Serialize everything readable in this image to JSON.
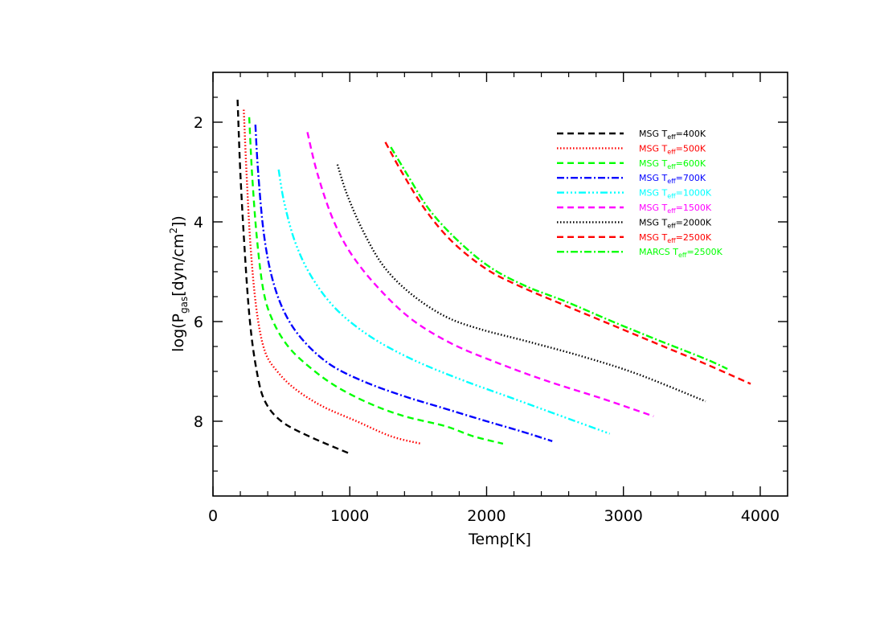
{
  "chart_data": {
    "type": "line",
    "title": "",
    "xlabel": "Temp[K]",
    "ylabel_parts": {
      "pre": "log(P",
      "sub": "gas",
      "mid": "[dyn/cm",
      "sup": "2",
      "post": "])"
    },
    "xlim": [
      0,
      4200
    ],
    "ylim": [
      9.5,
      1
    ],
    "y_inverted": true,
    "xticks": [
      0,
      1000,
      2000,
      3000,
      4000
    ],
    "yticks": [
      2,
      4,
      6,
      8
    ],
    "legend_position": "top-right",
    "series": [
      {
        "name": "MSG Teff=400K",
        "label_pre": "MSG T",
        "label_sub": "eff",
        "label_post": "=400K",
        "color": "#000000",
        "dash": "dashed",
        "x": [
          180,
          200,
          230,
          270,
          320,
          380,
          500,
          700,
          1000
        ],
        "y": [
          1.55,
          3.0,
          4.5,
          6.0,
          7.0,
          7.6,
          8.0,
          8.3,
          8.65
        ]
      },
      {
        "name": "MSG Teff=500K",
        "label_pre": "MSG T",
        "label_sub": "eff",
        "label_post": "=500K",
        "color": "#ff0000",
        "dash": "dotted",
        "x": [
          225,
          245,
          275,
          320,
          380,
          470,
          600,
          800,
          1050,
          1300,
          1520
        ],
        "y": [
          1.75,
          3.0,
          4.5,
          5.8,
          6.6,
          7.0,
          7.35,
          7.7,
          8.0,
          8.3,
          8.45
        ]
      },
      {
        "name": "MSG Teff=600K",
        "label_pre": "MSG T",
        "label_sub": "eff",
        "label_post": "=600K",
        "color": "#00ff00",
        "dash": "dashed",
        "x": [
          265,
          285,
          320,
          370,
          440,
          550,
          700,
          900,
          1150,
          1400,
          1700,
          1900,
          2120
        ],
        "y": [
          1.9,
          3.0,
          4.3,
          5.4,
          6.0,
          6.5,
          6.9,
          7.3,
          7.65,
          7.9,
          8.1,
          8.3,
          8.45
        ]
      },
      {
        "name": "MSG Teff=700K",
        "label_pre": "MSG T",
        "label_sub": "eff",
        "label_post": "=700K",
        "color": "#0000ff",
        "dash": "dashdot",
        "x": [
          310,
          330,
          370,
          430,
          520,
          650,
          850,
          1100,
          1400,
          1700,
          2000,
          2250,
          2480
        ],
        "y": [
          2.05,
          3.0,
          4.2,
          5.1,
          5.8,
          6.35,
          6.85,
          7.2,
          7.5,
          7.75,
          8.0,
          8.2,
          8.4
        ]
      },
      {
        "name": "MSG Teff=1000K",
        "label_pre": "MSG T",
        "label_sub": "eff",
        "label_post": "=1000K",
        "color": "#00ffff",
        "dash": "dashdotdotdot",
        "x": [
          480,
          520,
          600,
          720,
          900,
          1150,
          1450,
          1800,
          2150,
          2500,
          2900
        ],
        "y": [
          2.95,
          3.6,
          4.4,
          5.1,
          5.75,
          6.3,
          6.75,
          7.15,
          7.5,
          7.85,
          8.25
        ]
      },
      {
        "name": "MSG Teff=1500K",
        "label_pre": "MSG T",
        "label_sub": "eff",
        "label_post": "=1500K",
        "color": "#ff00ff",
        "dash": "dashed",
        "x": [
          690,
          760,
          870,
          1000,
          1200,
          1450,
          1750,
          2100,
          2450,
          2850,
          3220
        ],
        "y": [
          2.2,
          3.0,
          3.9,
          4.6,
          5.3,
          5.95,
          6.45,
          6.85,
          7.2,
          7.55,
          7.9
        ]
      },
      {
        "name": "MSG Teff=2000K",
        "label_pre": "MSG T",
        "label_sub": "eff",
        "label_post": "=2000K",
        "color": "#000000",
        "dash": "dotted",
        "x": [
          910,
          980,
          1100,
          1250,
          1450,
          1700,
          1950,
          2300,
          2700,
          3100,
          3600
        ],
        "y": [
          2.85,
          3.45,
          4.2,
          4.9,
          5.45,
          5.9,
          6.15,
          6.4,
          6.7,
          7.05,
          7.6
        ]
      },
      {
        "name": "MSG Teff=2500K",
        "label_pre": "MSG T",
        "label_sub": "eff",
        "label_post": "=2500K",
        "color": "#ff0000",
        "dash": "dashed",
        "x": [
          1260,
          1380,
          1550,
          1750,
          2000,
          2250,
          2550,
          2900,
          3250,
          3600,
          3930
        ],
        "y": [
          2.4,
          3.0,
          3.75,
          4.4,
          4.95,
          5.3,
          5.65,
          6.05,
          6.45,
          6.85,
          7.25
        ]
      },
      {
        "name": "MARCS Teff=2500K",
        "label_pre": "MARCS T",
        "label_sub": "eff",
        "label_post": "=2500K",
        "color": "#00ff00",
        "dash": "dashdot",
        "x": [
          1300,
          1420,
          1580,
          1780,
          2020,
          2280,
          2580,
          2920,
          3260,
          3600,
          3760
        ],
        "y": [
          2.5,
          3.05,
          3.75,
          4.35,
          4.9,
          5.28,
          5.6,
          6.0,
          6.38,
          6.75,
          6.95
        ]
      }
    ]
  }
}
